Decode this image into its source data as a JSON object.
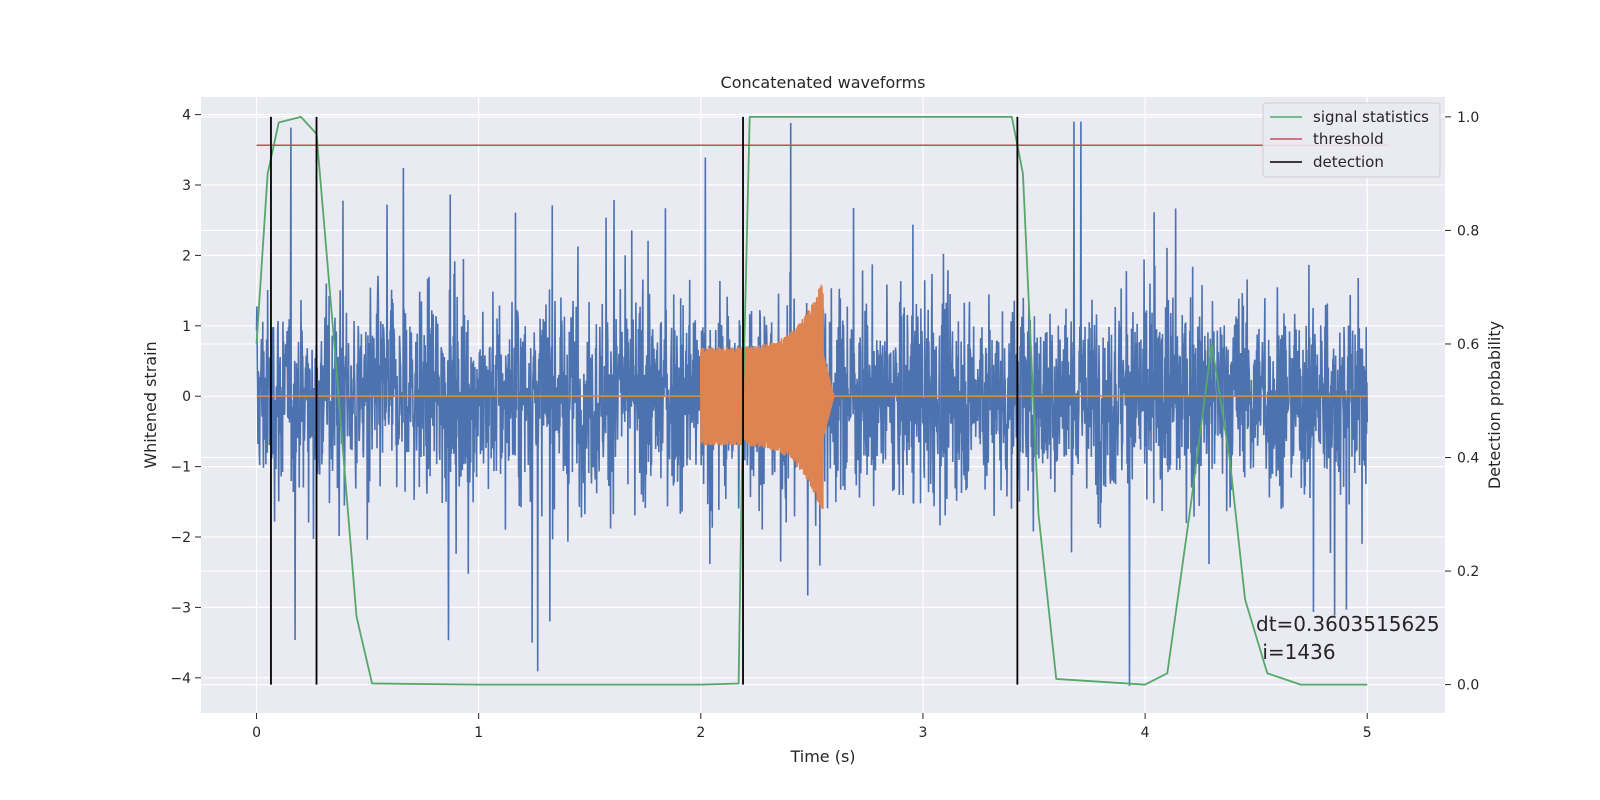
{
  "chart_data": {
    "type": "line",
    "title": "Concatenated waveforms",
    "xlabel": "Time (s)",
    "ylabel_left": "Whitened strain",
    "ylabel_right": "Detection probability",
    "xlim": [
      -0.25,
      5.35
    ],
    "ylim_left": [
      -4.5,
      4.25
    ],
    "ylim_right": [
      -0.05,
      1.035
    ],
    "xticks": [
      0,
      1,
      2,
      3,
      4,
      5
    ],
    "yticks_left": [
      -4,
      -3,
      -2,
      -1,
      0,
      1,
      2,
      3,
      4
    ],
    "yticks_right": [
      0.0,
      0.2,
      0.4,
      0.6,
      0.8,
      1.0
    ],
    "grid": true,
    "legend_position": "top-right",
    "series": [
      {
        "name": "noise",
        "axis": "left",
        "color": "#4c72b0",
        "description_kind": "whitened noise, approx. ±1 with spikes to ±4",
        "x_range": [
          0,
          5.0
        ],
        "y_envelope": [
          -4.2,
          3.9
        ]
      },
      {
        "name": "injected signal",
        "axis": "left",
        "color": "#dd8452",
        "x_range": [
          2.0,
          2.55
        ],
        "amplitude_start": 0.7,
        "amplitude_peak": 1.7,
        "peak_x": 2.55
      },
      {
        "name": "signal statistics",
        "axis": "right",
        "color": "#55a868",
        "x": [
          0.0,
          0.05,
          0.1,
          0.2,
          0.27,
          0.35,
          0.45,
          0.52,
          1.0,
          2.0,
          2.17,
          2.19,
          2.22,
          2.5,
          3.0,
          3.4,
          3.45,
          3.52,
          3.6,
          4.0,
          4.1,
          4.2,
          4.3,
          4.38,
          4.45,
          4.55,
          4.7,
          5.0
        ],
        "y": [
          0.6,
          0.9,
          0.99,
          1.0,
          0.97,
          0.6,
          0.12,
          0.002,
          0.0,
          0.0,
          0.002,
          0.5,
          1.0,
          1.0,
          1.0,
          1.0,
          0.9,
          0.3,
          0.01,
          0.0,
          0.02,
          0.3,
          0.6,
          0.4,
          0.15,
          0.02,
          0.0,
          0.0
        ]
      },
      {
        "name": "threshold",
        "axis": "right",
        "color": "#c44e52",
        "value": 0.95,
        "x_range": [
          0.0,
          5.1
        ]
      },
      {
        "name": "detection",
        "axis": "right",
        "color": "#000000",
        "x": [
          0.065,
          0.27,
          2.19,
          3.425
        ]
      }
    ],
    "legend": [
      {
        "label": "signal statistics",
        "color": "#55a868"
      },
      {
        "label": "threshold",
        "color": "#c44e52"
      },
      {
        "label": "detection",
        "color": "#000000"
      }
    ],
    "annotation": {
      "line1": "dt=0.3603515625",
      "line2": " i=1436"
    }
  }
}
